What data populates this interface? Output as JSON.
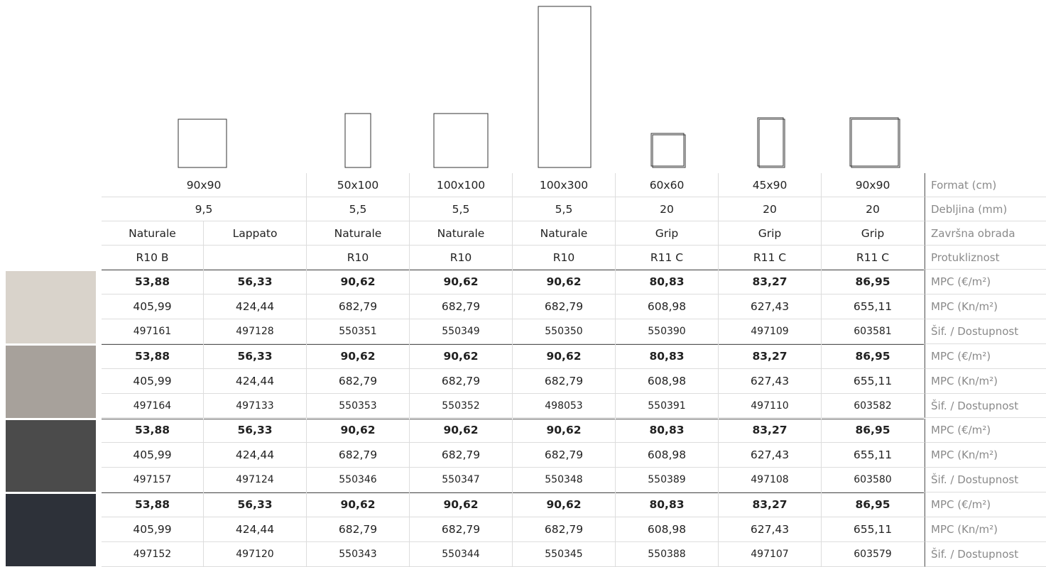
{
  "header_rows": [
    {
      "label": "Format (cm)",
      "cells": [
        "90x90",
        "50x100",
        "100x100",
        "100x300",
        "60x60",
        "45x90",
        "90x90"
      ]
    },
    {
      "label": "Debljina (mm)",
      "cells": [
        "9,5",
        "5,5",
        "5,5",
        "5,5",
        "20",
        "20",
        "20"
      ]
    },
    {
      "label": "Završna obrada",
      "cells": [
        "Naturale",
        "Lappato",
        "Naturale",
        "Naturale",
        "Naturale",
        "Grip",
        "Grip",
        "Grip"
      ]
    },
    {
      "label": "Protukliznost",
      "cells": [
        "R10 B",
        null,
        "R10",
        "R10",
        "R10",
        "R11 C",
        "R11 C",
        "R11 C"
      ]
    }
  ],
  "products": [
    {
      "rows": [
        {
          "label": "MPC (€/m²)",
          "cells": [
            "53,88",
            "56,33",
            "90,62",
            "90,62",
            "90,62",
            "80,83",
            "83,27",
            "86,95"
          ]
        },
        {
          "label": "MPC (Kn/m²)",
          "cells": [
            "405,99",
            "424,44",
            "682,79",
            "682,79",
            "682,79",
            "608,98",
            "627,43",
            "655,11"
          ]
        },
        {
          "label": "Šif. / Dostupnost",
          "cells": [
            "497161",
            "497128",
            "550351",
            "550349",
            "550350",
            "550390",
            "497109",
            "603581"
          ]
        }
      ]
    },
    {
      "rows": [
        {
          "label": "MPC (€/m²)",
          "cells": [
            "53,88",
            "56,33",
            "90,62",
            "90,62",
            "90,62",
            "80,83",
            "83,27",
            "86,95"
          ]
        },
        {
          "label": "MPC (Kn/m²)",
          "cells": [
            "405,99",
            "424,44",
            "682,79",
            "682,79",
            "682,79",
            "608,98",
            "627,43",
            "655,11"
          ]
        },
        {
          "label": "Šif. / Dostupnost",
          "cells": [
            "497164",
            "497133",
            "550353",
            "550352",
            "498053",
            "550391",
            "497110",
            "603582"
          ]
        }
      ]
    },
    {
      "rows": [
        {
          "label": "MPC (€/m²)",
          "cells": [
            "53,88",
            "56,33",
            "90,62",
            "90,62",
            "90,62",
            "80,83",
            "83,27",
            "86,95"
          ]
        },
        {
          "label": "MPC (Kn/m²)",
          "cells": [
            "405,99",
            "424,44",
            "682,79",
            "682,79",
            "682,79",
            "608,98",
            "627,43",
            "655,11"
          ]
        },
        {
          "label": "Šif. / Dostupnost",
          "cells": [
            "497157",
            "497124",
            "550346",
            "550347",
            "550348",
            "550389",
            "497108",
            "603580"
          ]
        }
      ]
    },
    {
      "rows": [
        {
          "label": "MPC (€/m²)",
          "cells": [
            "53,88",
            "56,33",
            "90,62",
            "90,62",
            "90,62",
            "80,83",
            "83,27",
            "86,95"
          ]
        },
        {
          "label": "MPC (Kn/m²)",
          "cells": [
            "405,99",
            "424,44",
            "682,79",
            "682,79",
            "682,79",
            "608,98",
            "627,43",
            "655,11"
          ]
        },
        {
          "label": "Šif. / Dostupnost",
          "cells": [
            "497152",
            "497120",
            "550343",
            "550344",
            "550345",
            "550388",
            "497107",
            "603579"
          ]
        }
      ]
    }
  ]
}
